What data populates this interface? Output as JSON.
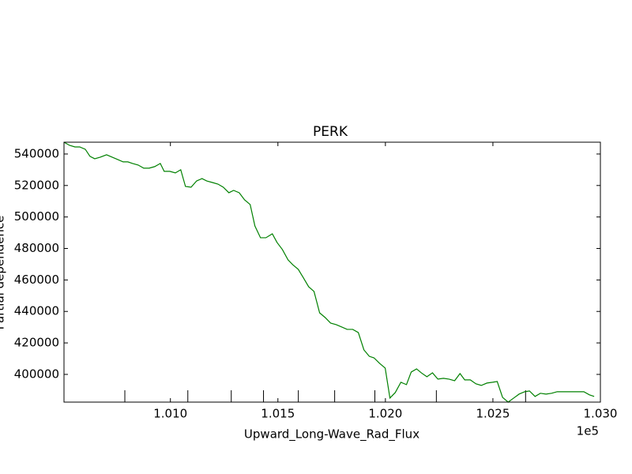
{
  "chart_data": {
    "type": "line",
    "title": "PERK",
    "x_label": "Upward_Long-Wave_Rad_Flux",
    "y_label": "Partial dependence",
    "x_offset_label": "1e5",
    "x": [
      100505,
      100531,
      100556,
      100578,
      100604,
      100626,
      100648,
      100674,
      100703,
      100729,
      100755,
      100780,
      100802,
      100824,
      100850,
      100876,
      100901,
      100927,
      100953,
      100971,
      100997,
      101023,
      101048,
      101070,
      101096,
      101122,
      101147,
      101169,
      101195,
      101221,
      101246,
      101272,
      101294,
      101320,
      101345,
      101371,
      101393,
      101419,
      101444,
      101474,
      101496,
      101521,
      101547,
      101569,
      101595,
      101617,
      101643,
      101668,
      101694,
      101720,
      101745,
      101771,
      101797,
      101822,
      101848,
      101874,
      101900,
      101925,
      101947,
      101973,
      101999,
      102021,
      102046,
      102072,
      102098,
      102120,
      102145,
      102167,
      102193,
      102219,
      102244,
      102270,
      102296,
      102322,
      102347,
      102369,
      102395,
      102421,
      102446,
      102472,
      102498,
      102520,
      102545,
      102571,
      102597,
      102622,
      102648,
      102670,
      102696,
      102721,
      102747,
      102773,
      102799,
      102824,
      102850,
      102876,
      102898,
      102923,
      102949,
      102971
    ],
    "series": [
      {
        "color": "#008000",
        "values": [
          547500,
          545500,
          544500,
          544500,
          543000,
          538500,
          537000,
          538000,
          539500,
          538000,
          536500,
          535000,
          535000,
          534000,
          533000,
          531000,
          531000,
          532000,
          534000,
          529000,
          529000,
          528000,
          530000,
          519400,
          518900,
          522900,
          524400,
          522900,
          521900,
          520900,
          518900,
          515400,
          516900,
          515400,
          510900,
          507900,
          494300,
          486800,
          486800,
          489300,
          483800,
          479300,
          472800,
          469700,
          466700,
          461700,
          455700,
          452700,
          439100,
          436100,
          432600,
          431600,
          430100,
          428600,
          428600,
          426600,
          415600,
          411500,
          410500,
          407000,
          404000,
          385000,
          388500,
          395000,
          393500,
          401500,
          403500,
          401000,
          398500,
          401000,
          397000,
          397500,
          397000,
          396000,
          400500,
          396500,
          396500,
          394000,
          393000,
          394500,
          395000,
          395500,
          385400,
          382400,
          385000,
          387500,
          389000,
          389500,
          386000,
          388000,
          387500,
          388000,
          389000,
          389000,
          389000,
          389000,
          389000,
          389000,
          387000,
          386000
        ]
      }
    ],
    "deciles": [
      100788,
      101081,
      101283,
      101433,
      101595,
      101764,
      101951,
      102237,
      102652
    ],
    "xlim": [
      100505,
      103000
    ],
    "xticks": [
      {
        "value": 101000,
        "label": "1.010"
      },
      {
        "value": 101500,
        "label": "1.015"
      },
      {
        "value": 102000,
        "label": "1.020"
      },
      {
        "value": 102500,
        "label": "1.025"
      },
      {
        "value": 103000,
        "label": "1.030"
      }
    ],
    "ylim": [
      382400,
      547500
    ],
    "yticks": [
      400000,
      420000,
      440000,
      460000,
      480000,
      500000,
      520000,
      540000
    ],
    "grid": false
  }
}
